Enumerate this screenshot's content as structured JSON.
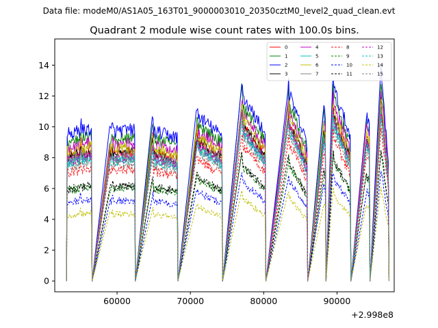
{
  "figure": {
    "suptitle": "Data file: modeM0/AS1A05_163T01_9000003010_20350cztM0_level2_quad_clean.evt",
    "title": "Quadrant 2 module wise count rates with 100.0s bins."
  },
  "chart_data": {
    "type": "line",
    "title": "Quadrant 2 module wise count rates with 100.0s bins.",
    "xlabel": "",
    "ylabel": "",
    "x_offset_label": "+2.998e8",
    "x_offset": 299800000,
    "xlim": [
      51500,
      97800
    ],
    "ylim": [
      -0.7,
      15.7
    ],
    "x_ticks": [
      60000,
      70000,
      80000,
      90000
    ],
    "x_tick_labels": [
      "60000",
      "70000",
      "80000",
      "90000"
    ],
    "y_ticks": [
      0,
      2,
      4,
      6,
      8,
      10,
      12,
      14
    ],
    "y_tick_labels": [
      "0",
      "2",
      "4",
      "6",
      "8",
      "10",
      "12",
      "14"
    ],
    "grid": false,
    "legend_position": "top-right",
    "legend_columns": 4,
    "segments": [
      {
        "start": 53200,
        "end": 56500,
        "peak_start": 0.96,
        "peak_end": 1.0,
        "spike_frac": 0.55,
        "spike_amp": 0.06
      },
      {
        "start": 59000,
        "end": 62400,
        "peak_start": 0.98,
        "peak_end": 0.99,
        "spike_frac": 0.1,
        "spike_amp": 0.03
      },
      {
        "start": 64800,
        "end": 68200,
        "peak_start": 0.98,
        "peak_end": 0.94,
        "spike_frac": 0.02,
        "spike_amp": 0.08
      },
      {
        "start": 70800,
        "end": 74300,
        "peak_start": 1.09,
        "peak_end": 0.95,
        "spike_frac": 0.05,
        "spike_amp": 0.04
      },
      {
        "start": 77000,
        "end": 80200,
        "peak_start": 1.22,
        "peak_end": 0.97,
        "spike_frac": 0.02,
        "spike_amp": 0.1
      },
      {
        "start": 83300,
        "end": 85900,
        "peak_start": 1.25,
        "peak_end": 0.9,
        "spike_frac": 0.03,
        "spike_amp": 0.08
      },
      {
        "start": 88200,
        "end": 88400,
        "peak_start": 1.15,
        "peak_end": 1.1,
        "spike_frac": 0.5,
        "spike_amp": 0.0
      },
      {
        "start": 89400,
        "end": 91800,
        "peak_start": 1.28,
        "peak_end": 0.95,
        "spike_frac": 0.04,
        "spike_amp": 0.08
      },
      {
        "start": 94000,
        "end": 94400,
        "peak_start": 1.1,
        "peak_end": 1.05,
        "spike_frac": 0.5,
        "spike_amp": 0.0
      },
      {
        "start": 96000,
        "end": 97000,
        "peak_start": 1.38,
        "peak_end": 0.8,
        "spike_frac": 0.05,
        "spike_amp": 0.05
      }
    ],
    "gap_value": 0,
    "series": [
      {
        "name": "0",
        "color": "#ff0000",
        "style": "solid",
        "base": 8.4
      },
      {
        "name": "1",
        "color": "#008000",
        "style": "solid",
        "base": 9.4
      },
      {
        "name": "2",
        "color": "#0000ff",
        "style": "solid",
        "base": 9.9
      },
      {
        "name": "3",
        "color": "#000000",
        "style": "solid",
        "base": 8.4
      },
      {
        "name": "4",
        "color": "#bf00bf",
        "style": "solid",
        "base": 9.0
      },
      {
        "name": "5",
        "color": "#00bfbf",
        "style": "solid",
        "base": 8.0
      },
      {
        "name": "6",
        "color": "#bfbf00",
        "style": "solid",
        "base": 8.7
      },
      {
        "name": "7",
        "color": "#808080",
        "style": "solid",
        "base": 8.2
      },
      {
        "name": "8",
        "color": "#ff0000",
        "style": "dashed",
        "base": 7.3
      },
      {
        "name": "9",
        "color": "#008000",
        "style": "dashed",
        "base": 6.1
      },
      {
        "name": "10",
        "color": "#0000ff",
        "style": "dashed",
        "base": 5.3
      },
      {
        "name": "11",
        "color": "#000000",
        "style": "dashed",
        "base": 6.2
      },
      {
        "name": "12",
        "color": "#bf00bf",
        "style": "dashed",
        "base": 8.1
      },
      {
        "name": "13",
        "color": "#00bfbf",
        "style": "dashed",
        "base": 7.9
      },
      {
        "name": "14",
        "color": "#bfbf00",
        "style": "dashed",
        "base": 4.4
      },
      {
        "name": "15",
        "color": "#808080",
        "style": "dashed",
        "base": 7.7
      }
    ]
  }
}
